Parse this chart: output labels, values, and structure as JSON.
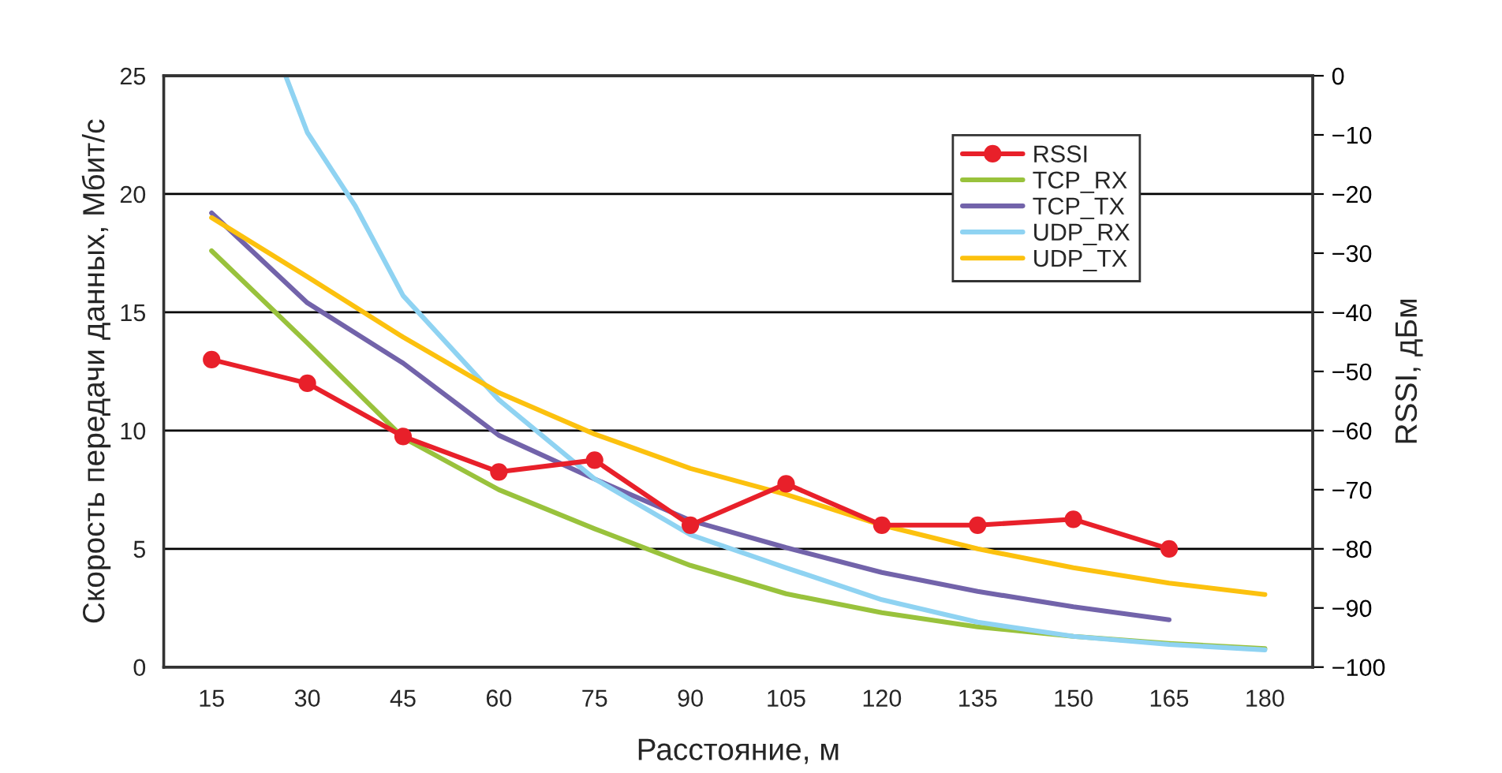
{
  "chart_data": {
    "type": "line",
    "xlabel": "Расстояние, м",
    "ylabel": "Скорость передачи данных, Мбит/с",
    "y2label": "RSSI, дБм",
    "x": [
      15,
      30,
      45,
      60,
      75,
      90,
      105,
      120,
      135,
      150,
      165,
      180
    ],
    "xlim": [
      7.5,
      187.5
    ],
    "xticks": [
      15,
      30,
      45,
      60,
      75,
      90,
      105,
      120,
      135,
      150,
      165,
      180
    ],
    "ylim": [
      0,
      25
    ],
    "yticks": [
      0,
      5,
      10,
      15,
      20,
      25
    ],
    "y2lim": [
      -100,
      0
    ],
    "y2ticks": [
      {
        "value": -100,
        "label": "−100"
      },
      {
        "value": -90,
        "label": "−90"
      },
      {
        "value": -80,
        "label": "−80"
      },
      {
        "value": -70,
        "label": "−70"
      },
      {
        "value": -60,
        "label": "−60"
      },
      {
        "value": -50,
        "label": "−50"
      },
      {
        "value": -40,
        "label": "−40"
      },
      {
        "value": -30,
        "label": "−30"
      },
      {
        "value": -20,
        "label": "−20"
      },
      {
        "value": -10,
        "label": "−10"
      },
      0
    ],
    "grid": "y",
    "legend": "top right",
    "series": [
      {
        "name": "RSSI",
        "color": "#e8202a",
        "axis": "y2",
        "marker": "circle",
        "x": [
          15,
          30,
          45,
          60,
          75,
          90,
          105,
          120,
          135,
          150,
          165
        ],
        "values": [
          -48,
          -52,
          -61,
          -67,
          -65,
          -76,
          -69,
          -76,
          -76,
          -75,
          -80
        ]
      },
      {
        "name": "TCP_RX",
        "color": "#99c23c",
        "values": [
          17.6,
          13.7,
          9.7,
          7.5,
          5.85,
          4.3,
          3.1,
          2.3,
          1.7,
          1.3,
          1.0,
          0.78
        ]
      },
      {
        "name": "TCP_TX",
        "color": "#7263aa",
        "x": [
          15,
          30,
          45,
          60,
          75,
          90,
          105,
          120,
          135,
          150,
          165
        ],
        "values": [
          19.2,
          15.4,
          12.85,
          9.8,
          7.95,
          6.2,
          5.05,
          4.0,
          3.2,
          2.55,
          2.0
        ]
      },
      {
        "name": "UDP_RX",
        "color": "#8fd3f2",
        "x": [
          26.6,
          30,
          37.5,
          45,
          60,
          75,
          90,
          105,
          120,
          135,
          150,
          165,
          180
        ],
        "values": [
          25,
          22.6,
          19.5,
          15.7,
          11.3,
          7.96,
          5.6,
          4.2,
          2.85,
          1.9,
          1.3,
          0.96,
          0.73
        ]
      },
      {
        "name": "UDP_TX",
        "color": "#fcc10e",
        "values": [
          19.0,
          16.5,
          13.95,
          11.6,
          9.85,
          8.4,
          7.3,
          6.0,
          5.0,
          4.2,
          3.55,
          3.07
        ]
      }
    ]
  }
}
